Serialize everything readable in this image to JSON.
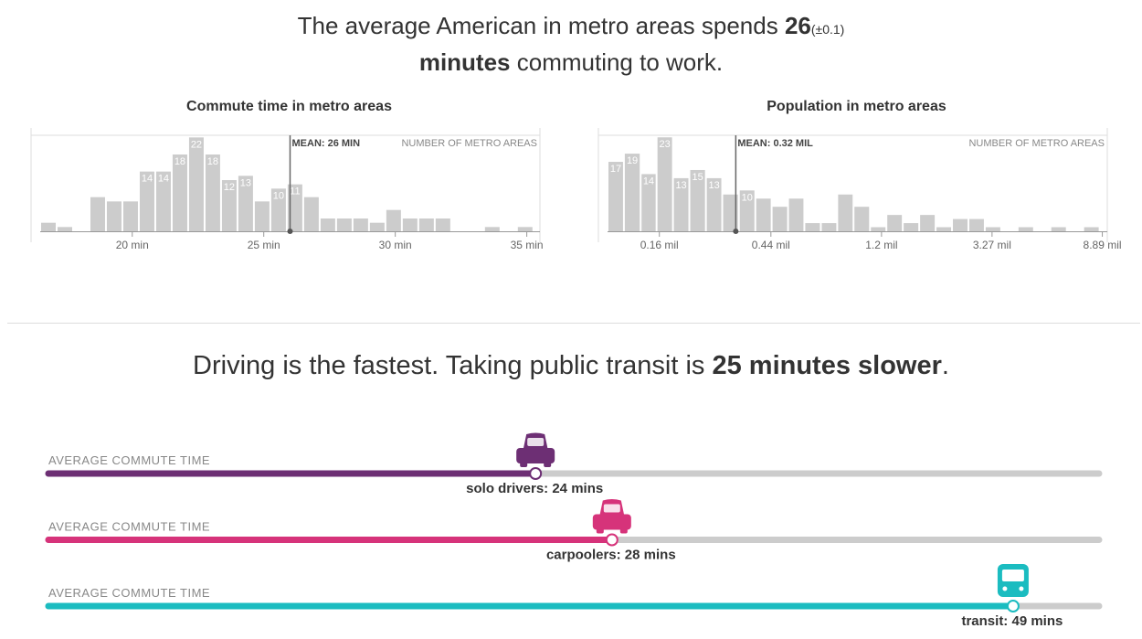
{
  "headline": {
    "line1": [
      "The average American in metro areas spends ",
      "26",
      "(±0.1)"
    ],
    "line2": [
      "minutes",
      " commuting to work."
    ]
  },
  "subheadline": [
    "Driving is the fastest. Taking public transit is ",
    "25 minutes slower",
    "."
  ],
  "chart_data": [
    {
      "type": "histogram",
      "title": "Commute time in metro areas",
      "ylabel": "NUMBER OF METRO AREAS",
      "color": "#cccccc",
      "bins": [
        16.5,
        17.125,
        17.75,
        18.375,
        19,
        19.625,
        20.25,
        20.875,
        21.5,
        22.125,
        22.75,
        23.375,
        24,
        24.625,
        25.25,
        25.875,
        26.5,
        27.125,
        27.75,
        28.375,
        29,
        29.625,
        30.25,
        30.875,
        31.5,
        32.125,
        32.75,
        33.375,
        34,
        34.625,
        35.25
      ],
      "values": [
        2,
        1,
        0,
        8,
        7,
        7,
        14,
        14,
        18,
        22,
        18,
        12,
        13,
        7,
        10,
        11,
        8,
        3,
        3,
        3,
        2,
        5,
        3,
        3,
        3,
        0,
        0,
        1,
        0,
        1
      ],
      "value_labels": [
        null,
        null,
        null,
        null,
        null,
        null,
        "14",
        "14",
        "18",
        "22",
        "18",
        "12",
        "13",
        null,
        "10",
        "11",
        null,
        null,
        null,
        null,
        null,
        null,
        null,
        null,
        null,
        null,
        null,
        null,
        null,
        null
      ],
      "xlim": [
        16.5,
        35.5
      ],
      "ylim": [
        0,
        22.5
      ],
      "xticks": [
        {
          "value": 20,
          "label": "20 min"
        },
        {
          "value": 25,
          "label": "25 min"
        },
        {
          "value": 30,
          "label": "30 min"
        },
        {
          "value": 35,
          "label": "35 min"
        }
      ],
      "mean": 26,
      "mean_label": "MEAN: 26 MIN"
    },
    {
      "type": "histogram",
      "title": "Population in metro areas",
      "ylabel": "NUMBER OF METRO AREAS",
      "color": "#cccccc",
      "log_x": true,
      "bins": [
        0.1,
        0.116,
        0.135,
        0.156,
        0.181,
        0.21,
        0.244,
        0.283,
        0.329,
        0.382,
        0.443,
        0.514,
        0.596,
        0.692,
        0.803,
        0.931,
        1.081,
        1.254,
        1.455,
        1.689,
        1.96,
        2.274,
        2.639,
        3.062,
        3.553,
        4.123,
        4.784,
        5.552,
        6.442,
        7.476,
        8.675
      ],
      "values": [
        17,
        19,
        14,
        23,
        13,
        15,
        13,
        9,
        10,
        8,
        6,
        8,
        2,
        2,
        9,
        6,
        1,
        4,
        2,
        4,
        1,
        3,
        3,
        1,
        0,
        1,
        0,
        1,
        0,
        1
      ],
      "value_labels": [
        "17",
        "19",
        "14",
        "23",
        "13",
        "15",
        "13",
        null,
        "10",
        null,
        null,
        null,
        null,
        null,
        null,
        null,
        null,
        null,
        null,
        null,
        null,
        null,
        null,
        null,
        null,
        null,
        null,
        null,
        null,
        null
      ],
      "xlim": [
        0.1,
        9.3
      ],
      "ylim": [
        0,
        23.5
      ],
      "xticks": [
        {
          "value": 0.16,
          "label": "0.16 mil"
        },
        {
          "value": 0.44,
          "label": "0.44 mil"
        },
        {
          "value": 1.2,
          "label": "1.2 mil"
        },
        {
          "value": 3.27,
          "label": "3.27 mil"
        },
        {
          "value": 8.89,
          "label": "8.89 mil"
        }
      ],
      "mean": 0.32,
      "mean_label": "MEAN: 0.32 MIL"
    },
    {
      "type": "track",
      "row_label": "AVERAGE COMMUTE TIME",
      "track_color": "#cccccc",
      "xlim": [
        -1.5,
        53.5
      ],
      "series": [
        {
          "color": "#6d2f74",
          "icon": "car",
          "values": [
            24
          ],
          "value_labels": [
            "solo drivers: 24 mins"
          ]
        },
        {
          "color": "#d6337a",
          "icon": "car",
          "values": [
            28
          ],
          "value_labels": [
            "carpoolers: 28 mins"
          ]
        },
        {
          "color": "#1bbcc0",
          "icon": "bus",
          "values": [
            49
          ],
          "value_labels": [
            "transit: 49 mins"
          ]
        }
      ]
    }
  ]
}
